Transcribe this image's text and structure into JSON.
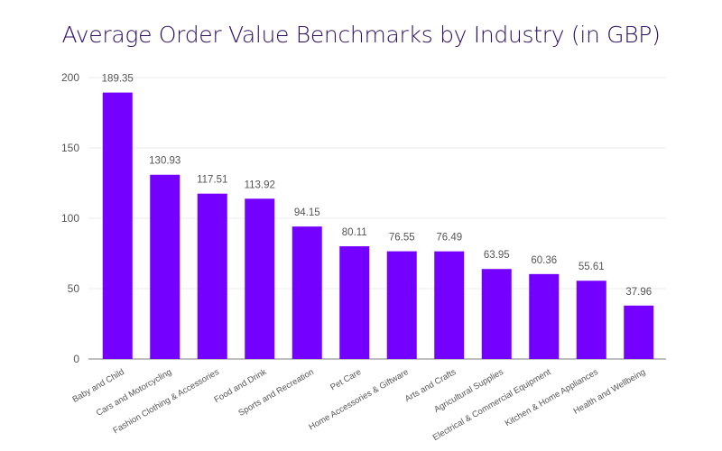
{
  "chart_data": {
    "type": "bar",
    "title": "Average Order Value Benchmarks by Industry (in GBP)",
    "categories": [
      "Baby and Child",
      "Cars and Motorcycling",
      "Fashion Clothing & Accessories",
      "Food and Drink",
      "Sports and Recreation",
      "Pet Care",
      "Home Accessories & Giftware",
      "Arts and Crafts",
      "Agricultural Supplies",
      "Electrical & Commercial Equipment",
      "Kitchen & Home Appliances",
      "Health and Wellbeing"
    ],
    "values": [
      189.35,
      130.93,
      117.51,
      113.92,
      94.15,
      80.11,
      76.55,
      76.49,
      63.95,
      60.36,
      55.61,
      37.96
    ],
    "data_labels": [
      "189.35",
      "130.93",
      "117.51",
      "113.92",
      "94.15",
      "80.11",
      "76.55",
      "76.49",
      "63.95",
      "60.36",
      "55.61",
      "37.96"
    ],
    "yticks": [
      "0",
      "50",
      "100",
      "150",
      "200"
    ],
    "ylim": [
      0,
      200
    ],
    "xlabel": "",
    "ylabel": "",
    "grid": true,
    "bar_color": "#7400ff",
    "title_color": "#2f0d63"
  }
}
